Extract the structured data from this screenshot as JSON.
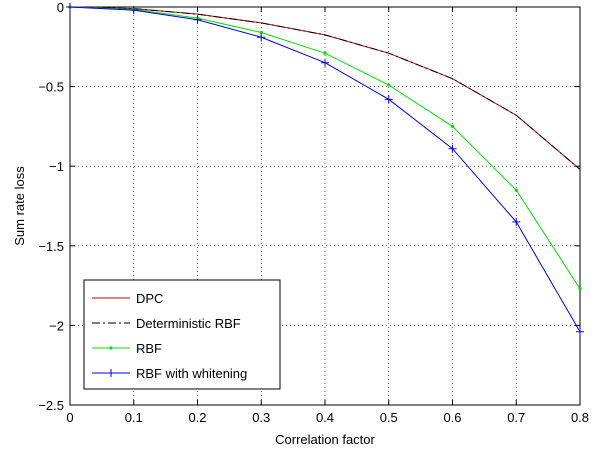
{
  "chart_data": {
    "type": "line",
    "title": "",
    "xlabel": "Correlation factor",
    "ylabel": "Sum rate loss",
    "xlim": [
      0,
      0.8
    ],
    "ylim": [
      -2.5,
      0
    ],
    "xticks": [
      0,
      0.1,
      0.2,
      0.3,
      0.4,
      0.5,
      0.6,
      0.7,
      0.8
    ],
    "yticks": [
      0,
      -0.5,
      -1,
      -1.5,
      -2,
      -2.5
    ],
    "xtick_labels": [
      "0",
      "0.1",
      "0.2",
      "0.3",
      "0.4",
      "0.5",
      "0.6",
      "0.7",
      "0.8"
    ],
    "ytick_labels": [
      "0",
      "−0.5",
      "−1",
      "−1.5",
      "−2",
      "−2.5"
    ],
    "grid": true,
    "legend_position": "bottom-left",
    "x": [
      0,
      0.1,
      0.2,
      0.3,
      0.4,
      0.5,
      0.6,
      0.7,
      0.8
    ],
    "series": [
      {
        "name": "DPC",
        "color": "#cc0000",
        "dash": "solid",
        "marker": "none",
        "values": [
          0,
          -0.01,
          -0.045,
          -0.1,
          -0.175,
          -0.29,
          -0.45,
          -0.68,
          -1.02
        ]
      },
      {
        "name": "Deterministic RBF",
        "color": "#000000",
        "dash": "dashdot",
        "marker": "none",
        "values": [
          0,
          -0.01,
          -0.045,
          -0.1,
          -0.175,
          -0.29,
          -0.45,
          -0.68,
          -1.02
        ]
      },
      {
        "name": "RBF",
        "color": "#00e000",
        "dash": "solid",
        "marker": "dot",
        "values": [
          0,
          -0.015,
          -0.07,
          -0.16,
          -0.29,
          -0.49,
          -0.75,
          -1.15,
          -1.77
        ]
      },
      {
        "name": "RBF with whitening",
        "color": "#0000ee",
        "dash": "solid",
        "marker": "plus",
        "values": [
          0,
          -0.02,
          -0.08,
          -0.19,
          -0.35,
          -0.58,
          -0.89,
          -1.35,
          -2.04
        ]
      }
    ]
  }
}
